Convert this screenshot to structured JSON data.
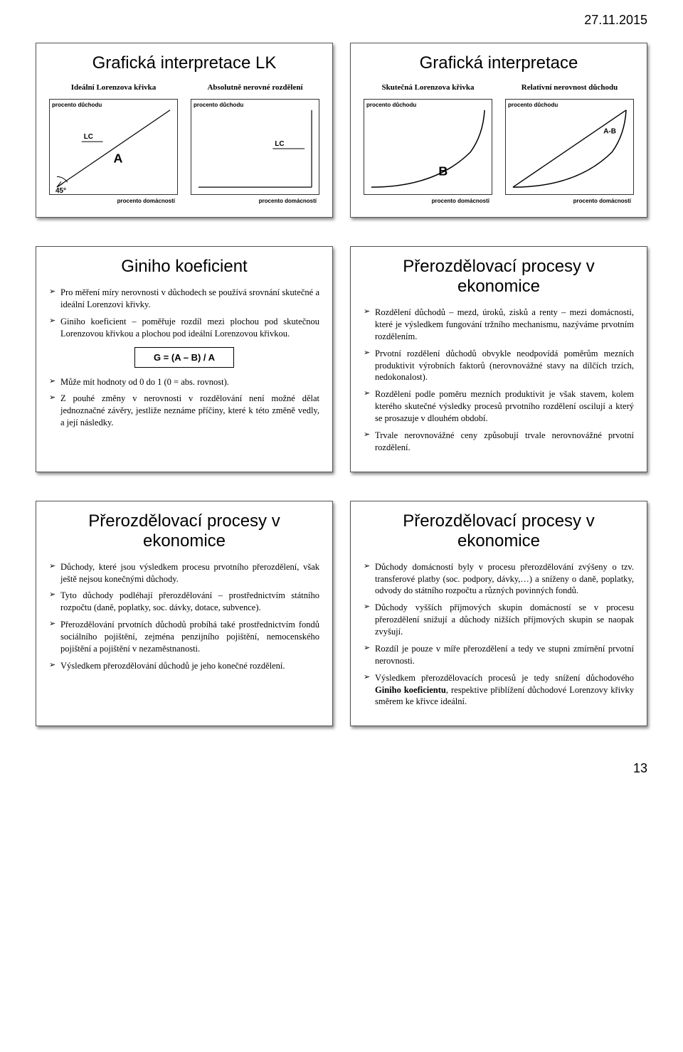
{
  "meta": {
    "date_stamp": "27.11.2015",
    "page_number": "13"
  },
  "row1": {
    "left": {
      "title": "Grafická interpretace LK",
      "charts": [
        {
          "subtitle": "Ideální Lorenzova křivka",
          "y_label": "procento důchodu",
          "x_label": "procento domácností",
          "type": "ideal",
          "lc_label": "LC",
          "a_label": "A",
          "angle_label": "45°",
          "line_color": "#000000",
          "line_width": 1.2
        },
        {
          "subtitle": "Absolutně nerovné rozdělení",
          "y_label": "procento důchodu",
          "x_label": "procento domácností",
          "type": "absolute",
          "lc_label": "LC",
          "line_color": "#000000",
          "line_width": 1.2
        }
      ]
    },
    "right": {
      "title": "Grafická interpretace",
      "charts": [
        {
          "subtitle": "Skutečná Lorenzova křivka",
          "y_label": "procento důchodu",
          "x_label": "procento domácností",
          "type": "real",
          "b_label": "B",
          "line_color": "#000000",
          "line_width": 1.5
        },
        {
          "subtitle": "Relativní nerovnost důchodu",
          "y_label": "procento důchodu",
          "x_label": "procento domácností",
          "type": "lens",
          "ab_label": "A-B",
          "line_color": "#000000",
          "line_width": 1.5
        }
      ]
    }
  },
  "row2": {
    "left": {
      "title": "Giniho koeficient",
      "bullets_pre": [
        "Pro měření míry nerovnosti v důchodech se používá srovnání skutečné a ideální Lorenzovi křivky.",
        "Giniho koeficient – poměřuje rozdíl mezi plochou pod skutečnou Lorenzovou křivkou a plochou pod ideální Lorenzovou křivkou."
      ],
      "formula": "G = (A – B) / A",
      "bullets_post": [
        "Může mít hodnoty od 0 do 1 (0 = abs. rovnost).",
        "Z pouhé změny v nerovnosti v rozdělování není možné dělat jednoznačné závěry, jestliže neznáme příčiny, které k této změně vedly, a její následky."
      ]
    },
    "right": {
      "title": "Přerozdělovací procesy v ekonomice",
      "bullets": [
        "Rozdělení důchodů – mezd, úroků, zisků a renty – mezi domácnosti, které je výsledkem fungování tržního mechanismu, nazýváme prvotním rozdělením.",
        "Prvotní rozdělení důchodů obvykle neodpovídá poměrům mezních produktivit výrobních faktorů (nerovnovážné stavy na dílčích trzích, nedokonalost).",
        "Rozdělení podle poměru mezních produktivit je však stavem, kolem kterého skutečné výsledky procesů prvotního rozdělení oscilují a který se prosazuje v dlouhém období.",
        "Trvale nerovnovážné ceny způsobují trvale nerovnovážné prvotní rozdělení."
      ]
    }
  },
  "row3": {
    "left": {
      "title": "Přerozdělovací procesy v ekonomice",
      "bullets": [
        "Důchody, které jsou výsledkem procesu prvotního přerozdělení, však ještě nejsou konečnými důchody.",
        "Tyto důchody podléhají přerozdělování – prostřednictvím státního rozpočtu (daně, poplatky, soc. dávky, dotace, subvence).",
        "Přerozdělování prvotních důchodů probíhá také prostřednictvím fondů sociálního pojištění, zejména penzijního pojištění, nemocenského pojištění a pojištění v nezaměstnanosti.",
        "Výsledkem přerozdělování důchodů je jeho konečné rozdělení."
      ]
    },
    "right": {
      "title": "Přerozdělovací procesy v ekonomice",
      "bullets": [
        "Důchody domácností byly v procesu přerozdělování zvýšeny o tzv. transferové platby (soc. podpory, dávky,…) a sníženy o daně, poplatky, odvody do státního rozpočtu a různých povinných fondů.",
        "Důchody vyšších příjmových skupin domácností se v procesu přerozdělení snižují a důchody nižších příjmových skupin se naopak zvyšují.",
        "Rozdíl je pouze v míře přerozdělení a tedy ve stupni zmírnění prvotní nerovnosti.",
        "Výsledkem přerozdělovacích procesů je tedy snížení důchodového <b>Giniho koeficientu</b>, respektive přiblížení důchodové Lorenzovy křivky směrem ke křivce ideální."
      ]
    }
  }
}
